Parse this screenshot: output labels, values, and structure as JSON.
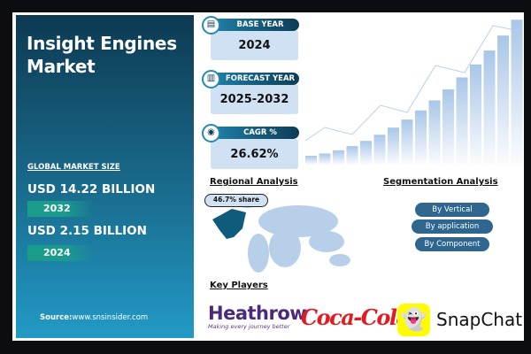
{
  "title": "Insight Engines Market",
  "left_panel": {
    "section_label": "GLOBAL MARKET SIZE",
    "values": [
      {
        "amount": "USD 14.22 BILLION",
        "year": "2032"
      },
      {
        "amount": "USD 2.15 BILLION",
        "year": "2024"
      }
    ],
    "source_label": "Source:",
    "source_url": "www.snsinsider.com"
  },
  "stats": [
    {
      "label": "BASE YEAR",
      "value": "2024",
      "icon": "document-icon"
    },
    {
      "label": "FORECAST YEAR",
      "value": "2025-2032",
      "icon": "chart-icon"
    },
    {
      "label": "CAGR %",
      "value": "26.62%",
      "icon": "growth-icon"
    }
  ],
  "regional": {
    "heading": "Regional Analysis",
    "share_label": "46.7% share"
  },
  "segmentation": {
    "heading": "Segmentation Analysis",
    "items": [
      "By Vertical",
      "By application",
      "By Component"
    ]
  },
  "key_players": {
    "heading": "Key Players",
    "players": [
      {
        "name": "Heathrow",
        "tagline": "Making every journey better"
      },
      {
        "name": "Coca-Cola"
      },
      {
        "name": "SnapChat"
      }
    ]
  },
  "colors": {
    "panel_dark": "#0d3a52",
    "panel_light": "#229ac6",
    "accent_teal": "#1a9c8c",
    "light_box": "#cfe1f3",
    "segment_button": "#2e6690"
  }
}
